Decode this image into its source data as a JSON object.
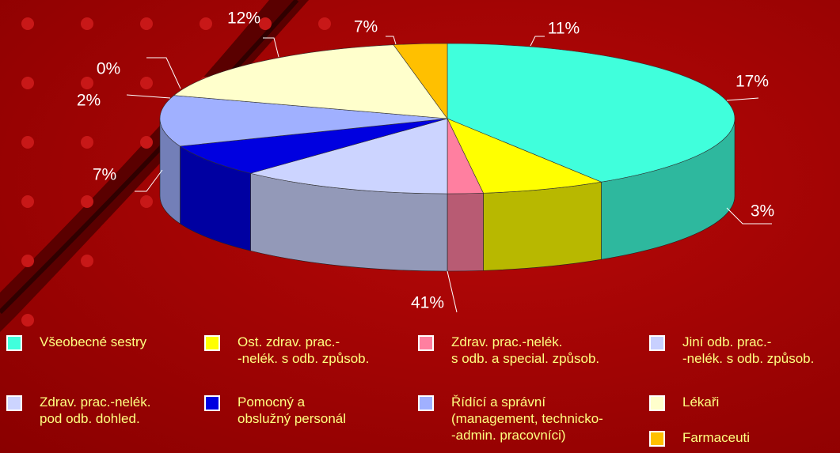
{
  "chart_data": {
    "type": "pie3d",
    "series": [
      {
        "name": "Všeobecné sestry",
        "color": "#40ffdc",
        "values": [
          41
        ],
        "value_labels": [
          "41%"
        ]
      },
      {
        "name": "Ost. zdrav. prac.-\n-nelék. s odb. způsob.",
        "color": "#ffff00",
        "values": [
          7
        ],
        "value_labels": [
          "7%"
        ]
      },
      {
        "name": "Zdrav. prac.-nelék.\ns odb. a special. způsob.",
        "color": "#ff7fa0",
        "values": [
          2
        ],
        "value_labels": [
          "2%"
        ]
      },
      {
        "name": "Jiní odb. prac.-\n-nelék. s odb. způsob.",
        "color": "#c8d0ff",
        "values": [
          0
        ],
        "value_labels": [
          "0%"
        ]
      },
      {
        "name": "Zdrav. prac.-nelék.\npod odb. dohled.",
        "color": "#ccd4ff",
        "values": [
          12
        ],
        "value_labels": [
          "12%"
        ]
      },
      {
        "name": "Pomocný a\nobslužný personál",
        "color": "#0000e0",
        "values": [
          7
        ],
        "value_labels": [
          "7%"
        ]
      },
      {
        "name": "Řídící a správní\n(management, technicko-\n-admin. pracovníci)",
        "color": "#a0b0ff",
        "values": [
          11
        ],
        "value_labels": [
          "11%"
        ]
      },
      {
        "name": "Lékaři",
        "color": "#ffffcc",
        "values": [
          17
        ],
        "value_labels": [
          "17%"
        ]
      },
      {
        "name": "Farmaceuti",
        "color": "#ffc000",
        "values": [
          3
        ],
        "value_labels": [
          "3%"
        ]
      }
    ]
  }
}
